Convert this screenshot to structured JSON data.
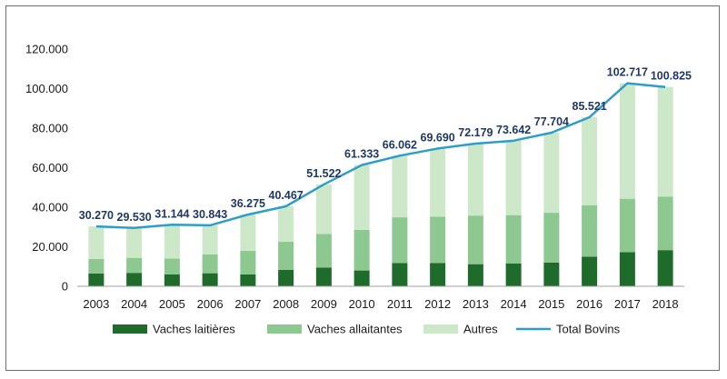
{
  "chart_data": {
    "type": "bar",
    "stacked": true,
    "categories": [
      "2003",
      "2004",
      "2005",
      "2006",
      "2007",
      "2008",
      "2009",
      "2010",
      "2011",
      "2012",
      "2013",
      "2014",
      "2015",
      "2016",
      "2017",
      "2018"
    ],
    "series": [
      {
        "name": "Vaches laitières",
        "type": "bar",
        "color": "#1e6b2c",
        "values": [
          6500,
          6800,
          6000,
          6600,
          6000,
          8300,
          9500,
          8000,
          11800,
          11800,
          11200,
          11600,
          12000,
          15000,
          17300,
          18300
        ]
      },
      {
        "name": "Vaches allaitantes",
        "type": "bar",
        "color": "#8cc88f",
        "values": [
          7300,
          7600,
          8000,
          9600,
          12000,
          14200,
          17000,
          20600,
          23100,
          23400,
          24600,
          24400,
          25200,
          26000,
          27000,
          27000
        ]
      },
      {
        "name": "Autres",
        "type": "bar",
        "color": "#cde8c8",
        "values": [
          16470,
          15130,
          17144,
          14643,
          18275,
          17967,
          25022,
          32733,
          31162,
          34490,
          36379,
          37642,
          40504,
          44521,
          58417,
          55525
        ]
      },
      {
        "name": "Total Bovins",
        "type": "line",
        "color": "#2e9ec9",
        "values": [
          30270,
          29530,
          31144,
          30843,
          36275,
          40467,
          51522,
          61333,
          66062,
          69690,
          72179,
          73642,
          77704,
          85521,
          102717,
          100825
        ],
        "labels": [
          "30.270",
          "29.530",
          "31.144",
          "30.843",
          "36.275",
          "40.467",
          "51.522",
          "61.333",
          "66.062",
          "69.690",
          "72.179",
          "73.642",
          "77.704",
          "85.521",
          "102.717",
          "100.825"
        ]
      }
    ],
    "ylim": [
      0,
      120000
    ],
    "yticks": [
      0,
      20000,
      40000,
      60000,
      80000,
      100000,
      120000
    ],
    "ytick_labels": [
      "0",
      "20.000",
      "40.000",
      "60.000",
      "80.000",
      "100.000",
      "120.000"
    ],
    "title": "",
    "xlabel": "",
    "ylabel": "",
    "grid": false,
    "legend_position": "bottom"
  }
}
